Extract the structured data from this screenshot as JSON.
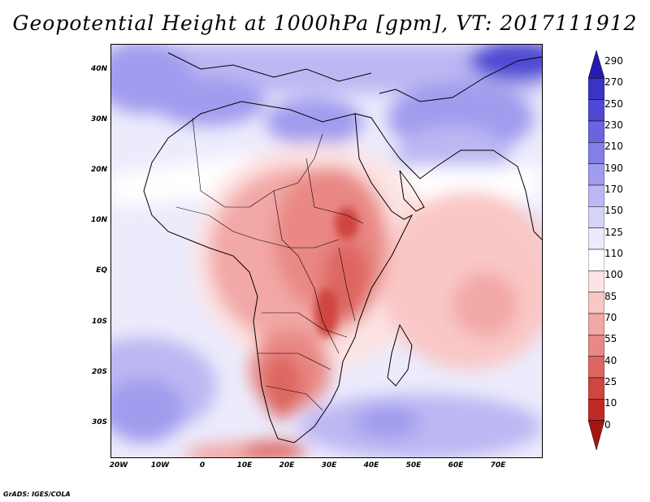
{
  "title": "Geopotential Height at 1000hPa [gpm], VT: 2017111912",
  "credit": "GrADS: IGES/COLA",
  "map": {
    "lat_labels": [
      "40N",
      "30N",
      "20N",
      "10N",
      "EQ",
      "10S",
      "20S",
      "30S"
    ],
    "lon_labels": [
      "20W",
      "10W",
      "0",
      "10E",
      "20E",
      "30E",
      "40E",
      "50E",
      "60E",
      "70E"
    ]
  },
  "colorbar": {
    "levels": [
      "290",
      "270",
      "250",
      "230",
      "210",
      "190",
      "170",
      "150",
      "125",
      "110",
      "100",
      "85",
      "70",
      "55",
      "40",
      "25",
      "10",
      "0"
    ],
    "colors": [
      "#241cb0",
      "#3a33c4",
      "#5048d4",
      "#6a64e0",
      "#857fe8",
      "#a19cee",
      "#bcb8f3",
      "#d6d4f8",
      "#ecebfc",
      "#ffffff",
      "#fde3e3",
      "#f9c7c6",
      "#f2a8a6",
      "#e98884",
      "#de6661",
      "#d04540",
      "#bf2a26",
      "#a51513"
    ]
  }
}
